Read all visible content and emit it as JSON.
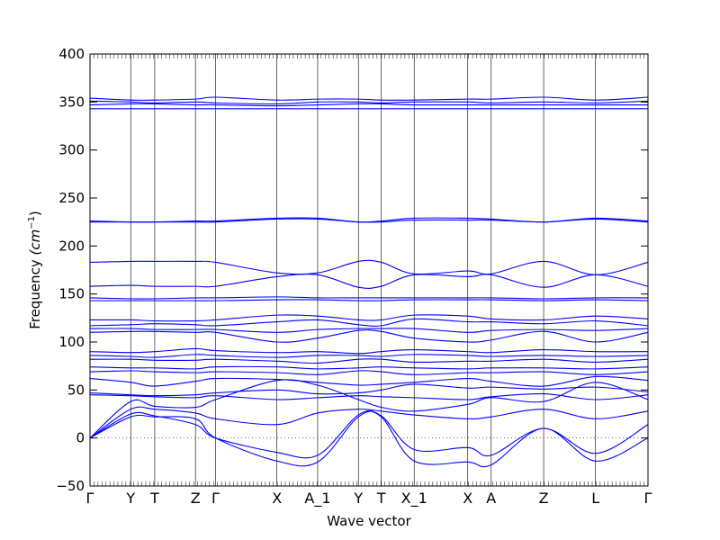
{
  "chart_data": {
    "type": "line",
    "xlabel": "Wave vector",
    "ylabel": "Frequency ",
    "ylabel_unit_math": "(cm",
    "ylabel_unit_sup": "−1",
    "ylabel_unit_close": ")",
    "ylim": [
      -50,
      400
    ],
    "yticks": [
      -50,
      0,
      50,
      100,
      150,
      200,
      250,
      300,
      350,
      400
    ],
    "xlim": [
      0,
      100
    ],
    "high_symbol_points": [
      {
        "label": "Γ",
        "x": 0
      },
      {
        "label": "Y",
        "x": 7.3
      },
      {
        "label": "T",
        "x": 11.6
      },
      {
        "label": "Z",
        "x": 18.9
      },
      {
        "label": "Γ",
        "x": 22.5
      },
      {
        "label": "X",
        "x": 33.5
      },
      {
        "label": "A_1",
        "x": 40.8
      },
      {
        "label": "Y",
        "x": 48.1
      },
      {
        "label": "T",
        "x": 52.2
      },
      {
        "label": "X_1",
        "x": 58.1
      },
      {
        "label": "X",
        "x": 67.7
      },
      {
        "label": "A",
        "x": 71.9
      },
      {
        "label": "Z",
        "x": 81.3
      },
      {
        "label": "L",
        "x": 90.6
      },
      {
        "label": "Γ",
        "x": 100
      }
    ],
    "zero_line": 0,
    "line_color": "#0000ff",
    "series": [
      {
        "x": [
          0,
          7.3,
          11.6,
          18.9,
          22.5,
          33.5,
          40.8,
          48.1,
          52.2,
          58.1,
          67.7,
          71.9,
          81.3,
          90.6,
          100
        ],
        "values": [
          354,
          352,
          352,
          353,
          355,
          352,
          353,
          353,
          352,
          352,
          353,
          353,
          355,
          352,
          355
        ]
      },
      {
        "x": [
          0,
          7.3,
          11.6,
          18.9,
          22.5,
          33.5,
          40.8,
          48.1,
          52.2,
          58.1,
          67.7,
          71.9,
          81.3,
          90.6,
          100
        ],
        "values": [
          351,
          350,
          349,
          350,
          349,
          348,
          350,
          350,
          349,
          350,
          350,
          349,
          350,
          349,
          351
        ]
      },
      {
        "x": [
          0,
          7.3,
          11.6,
          18.9,
          22.5,
          33.5,
          40.8,
          48.1,
          52.2,
          58.1,
          67.7,
          71.9,
          81.3,
          90.6,
          100
        ],
        "values": [
          347,
          348,
          348,
          347,
          347,
          346,
          347,
          348,
          348,
          347,
          347,
          347,
          347,
          347,
          347
        ]
      },
      {
        "x": [
          0,
          7.3,
          11.6,
          18.9,
          22.5,
          33.5,
          40.8,
          48.1,
          52.2,
          58.1,
          67.7,
          71.9,
          81.3,
          90.6,
          100
        ],
        "values": [
          343,
          343,
          343,
          343,
          343,
          343,
          343,
          343,
          343,
          343,
          343,
          343,
          343,
          343,
          343
        ]
      },
      {
        "x": [
          0,
          7.3,
          11.6,
          18.9,
          22.5,
          33.5,
          40.8,
          48.1,
          52.2,
          58.1,
          67.7,
          71.9,
          81.3,
          90.6,
          100
        ],
        "values": [
          226,
          225,
          225,
          226,
          226,
          229,
          229,
          225,
          226,
          229,
          229,
          228,
          225,
          229,
          226
        ]
      },
      {
        "x": [
          0,
          7.3,
          11.6,
          18.9,
          22.5,
          33.5,
          40.8,
          48.1,
          52.2,
          58.1,
          67.7,
          71.9,
          81.3,
          90.6,
          100
        ],
        "values": [
          225,
          225,
          225,
          225,
          225,
          228,
          228,
          225,
          225,
          227,
          227,
          227,
          225,
          228,
          225
        ]
      },
      {
        "x": [
          0,
          7.3,
          11.6,
          18.9,
          22.5,
          33.5,
          40.8,
          48.1,
          52.2,
          58.1,
          67.7,
          71.9,
          81.3,
          90.6,
          100
        ],
        "values": [
          183,
          184,
          184,
          184,
          183,
          172,
          172,
          184,
          183,
          171,
          174,
          171,
          184,
          170,
          183
        ]
      },
      {
        "x": [
          0,
          7.3,
          11.6,
          18.9,
          22.5,
          33.5,
          40.8,
          48.1,
          52.2,
          58.1,
          67.7,
          71.9,
          81.3,
          90.6,
          100
        ],
        "values": [
          158,
          159,
          158,
          158,
          158,
          168,
          170,
          157,
          158,
          170,
          168,
          170,
          157,
          170,
          158
        ]
      },
      {
        "x": [
          0,
          7.3,
          11.6,
          18.9,
          22.5,
          33.5,
          40.8,
          48.1,
          52.2,
          58.1,
          67.7,
          71.9,
          81.3,
          90.6,
          100
        ],
        "values": [
          146,
          145,
          145,
          146,
          146,
          147,
          146,
          146,
          146,
          146,
          146,
          146,
          145,
          146,
          146
        ]
      },
      {
        "x": [
          0,
          7.3,
          11.6,
          18.9,
          22.5,
          33.5,
          40.8,
          48.1,
          52.2,
          58.1,
          67.7,
          71.9,
          81.3,
          90.6,
          100
        ],
        "values": [
          143,
          143,
          143,
          143,
          143,
          144,
          144,
          143,
          143,
          144,
          144,
          144,
          143,
          144,
          143
        ]
      },
      {
        "x": [
          0,
          7.3,
          11.6,
          18.9,
          22.5,
          33.5,
          40.8,
          48.1,
          52.2,
          58.1,
          67.7,
          71.9,
          81.3,
          90.6,
          100
        ],
        "values": [
          123,
          123,
          122,
          122,
          123,
          128,
          127,
          123,
          123,
          128,
          127,
          124,
          123,
          127,
          124
        ]
      },
      {
        "x": [
          0,
          7.3,
          11.6,
          18.9,
          22.5,
          33.5,
          40.8,
          48.1,
          52.2,
          58.1,
          67.7,
          71.9,
          81.3,
          90.6,
          100
        ],
        "values": [
          117,
          118,
          119,
          118,
          117,
          121,
          123,
          118,
          117,
          124,
          121,
          121,
          119,
          122,
          117
        ]
      },
      {
        "x": [
          0,
          7.3,
          11.6,
          18.9,
          22.5,
          33.5,
          40.8,
          48.1,
          52.2,
          58.1,
          67.7,
          71.9,
          81.3,
          90.6,
          100
        ],
        "values": [
          114,
          114,
          113,
          113,
          113,
          110,
          113,
          114,
          114,
          114,
          110,
          112,
          113,
          112,
          114
        ]
      },
      {
        "x": [
          0,
          7.3,
          11.6,
          18.9,
          22.5,
          33.5,
          40.8,
          48.1,
          52.2,
          58.1,
          67.7,
          71.9,
          81.3,
          90.6,
          100
        ],
        "values": [
          110,
          111,
          111,
          110,
          110,
          100,
          104,
          112,
          111,
          104,
          100,
          102,
          111,
          100,
          110
        ]
      },
      {
        "x": [
          0,
          7.3,
          11.6,
          18.9,
          22.5,
          33.5,
          40.8,
          48.1,
          52.2,
          58.1,
          67.7,
          71.9,
          81.3,
          90.6,
          100
        ],
        "values": [
          90,
          89,
          90,
          93,
          91,
          89,
          90,
          88,
          90,
          92,
          90,
          89,
          92,
          90,
          90
        ]
      },
      {
        "x": [
          0,
          7.3,
          11.6,
          18.9,
          22.5,
          33.5,
          40.8,
          48.1,
          52.2,
          58.1,
          67.7,
          71.9,
          81.3,
          90.6,
          100
        ],
        "values": [
          86,
          85,
          84,
          87,
          86,
          84,
          86,
          86,
          85,
          87,
          86,
          85,
          86,
          85,
          86
        ]
      },
      {
        "x": [
          0,
          7.3,
          11.6,
          18.9,
          22.5,
          33.5,
          40.8,
          48.1,
          52.2,
          58.1,
          67.7,
          71.9,
          81.3,
          90.6,
          100
        ],
        "values": [
          82,
          82,
          81,
          81,
          82,
          80,
          78,
          82,
          82,
          79,
          80,
          80,
          82,
          79,
          82
        ]
      },
      {
        "x": [
          0,
          7.3,
          11.6,
          18.9,
          22.5,
          33.5,
          40.8,
          48.1,
          52.2,
          58.1,
          67.7,
          71.9,
          81.3,
          90.6,
          100
        ],
        "values": [
          74,
          73,
          73,
          72,
          74,
          74,
          72,
          73,
          74,
          73,
          72,
          73,
          73,
          72,
          74
        ]
      },
      {
        "x": [
          0,
          7.3,
          11.6,
          18.9,
          22.5,
          33.5,
          40.8,
          48.1,
          52.2,
          58.1,
          67.7,
          71.9,
          81.3,
          90.6,
          100
        ],
        "values": [
          69,
          70,
          69,
          68,
          69,
          68,
          66,
          70,
          69,
          66,
          68,
          68,
          69,
          66,
          69
        ]
      },
      {
        "x": [
          0,
          7.3,
          11.6,
          18.9,
          22.5,
          33.5,
          40.8,
          48.1,
          52.2,
          58.1,
          67.7,
          71.9,
          81.3,
          90.6,
          100
        ],
        "values": [
          62,
          58,
          54,
          59,
          62,
          61,
          58,
          55,
          56,
          58,
          62,
          59,
          54,
          64,
          60
        ]
      },
      {
        "x": [
          0,
          7.3,
          11.6,
          18.9,
          22.5,
          33.5,
          40.8,
          48.1,
          52.2,
          58.1,
          67.7,
          71.9,
          81.3,
          90.6,
          100
        ],
        "values": [
          47,
          45,
          44,
          45,
          47,
          50,
          46,
          47,
          50,
          56,
          52,
          53,
          51,
          53,
          48
        ]
      },
      {
        "x": [
          0,
          7.3,
          11.6,
          18.9,
          22.5,
          33.5,
          40.8,
          48.1,
          52.2,
          58.1,
          67.7,
          71.9,
          81.3,
          90.6,
          100
        ],
        "values": [
          45,
          44,
          43,
          42,
          44,
          40,
          42,
          44,
          43,
          42,
          40,
          43,
          46,
          40,
          45
        ]
      },
      {
        "x": [
          0,
          7.3,
          11.6,
          18.9,
          22.5,
          33.5,
          40.8,
          48.1,
          52.2,
          58.1,
          67.7,
          71.9,
          81.3,
          90.6,
          100
        ],
        "values": [
          0,
          38,
          33,
          32,
          40,
          60,
          55,
          40,
          32,
          28,
          35,
          42,
          38,
          58,
          40
        ]
      },
      {
        "x": [
          0,
          7.3,
          11.6,
          18.9,
          22.5,
          33.5,
          40.8,
          48.1,
          52.2,
          58.1,
          67.7,
          71.9,
          81.3,
          90.6,
          100
        ],
        "values": [
          0,
          30,
          30,
          26,
          20,
          14,
          26,
          30,
          28,
          24,
          20,
          22,
          30,
          20,
          28
        ]
      },
      {
        "x": [
          0,
          7.3,
          11.6,
          18.9,
          22.5,
          33.5,
          40.8,
          48.1,
          52.2,
          58.1,
          67.7,
          71.9,
          81.3,
          90.6,
          100
        ],
        "values": [
          0,
          25,
          23,
          14,
          0,
          -15,
          -18,
          24,
          23,
          -12,
          -10,
          -18,
          10,
          -16,
          14
        ]
      },
      {
        "x": [
          0,
          7.3,
          11.6,
          18.9,
          22.5,
          33.5,
          40.8,
          48.1,
          52.2,
          58.1,
          67.7,
          71.9,
          81.3,
          90.6,
          100
        ],
        "values": [
          0,
          22,
          22,
          20,
          0,
          -24,
          -25,
          22,
          22,
          -24,
          -25,
          -28,
          10,
          -24,
          0
        ]
      }
    ]
  }
}
